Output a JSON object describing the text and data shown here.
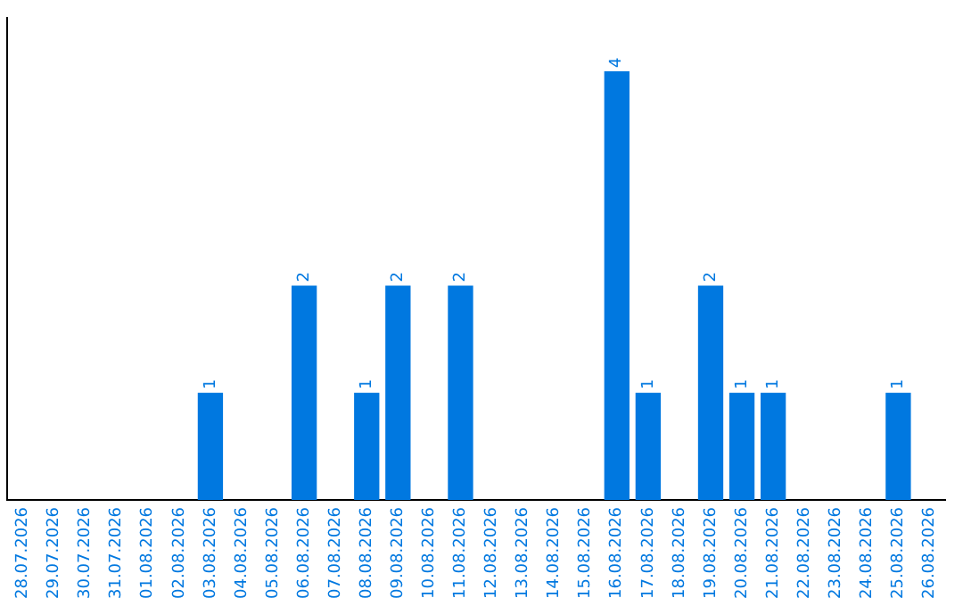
{
  "chart_data": {
    "type": "bar",
    "categories": [
      "28.07.2026",
      "29.07.2026",
      "30.07.2026",
      "31.07.2026",
      "01.08.2026",
      "02.08.2026",
      "03.08.2026",
      "04.08.2026",
      "05.08.2026",
      "06.08.2026",
      "07.08.2026",
      "08.08.2026",
      "09.08.2026",
      "10.08.2026",
      "11.08.2026",
      "12.08.2026",
      "13.08.2026",
      "14.08.2026",
      "15.08.2026",
      "16.08.2026",
      "17.08.2026",
      "18.08.2026",
      "19.08.2026",
      "20.08.2026",
      "21.08.2026",
      "22.08.2026",
      "23.08.2026",
      "24.08.2026",
      "25.08.2026",
      "26.08.2026"
    ],
    "values": [
      0,
      0,
      0,
      0,
      0,
      0,
      1,
      0,
      0,
      2,
      0,
      1,
      2,
      0,
      2,
      0,
      0,
      0,
      0,
      4,
      1,
      0,
      2,
      1,
      1,
      0,
      0,
      0,
      1,
      0
    ],
    "value_labels": [
      null,
      null,
      null,
      null,
      null,
      null,
      "1",
      null,
      null,
      "2",
      null,
      "1",
      "2",
      null,
      "2",
      null,
      null,
      null,
      null,
      "4",
      "1",
      null,
      "2",
      "1",
      "1",
      null,
      null,
      null,
      "1",
      null
    ],
    "color": "#0078e0",
    "grid": false,
    "legend": false,
    "tick_labels": "x"
  }
}
